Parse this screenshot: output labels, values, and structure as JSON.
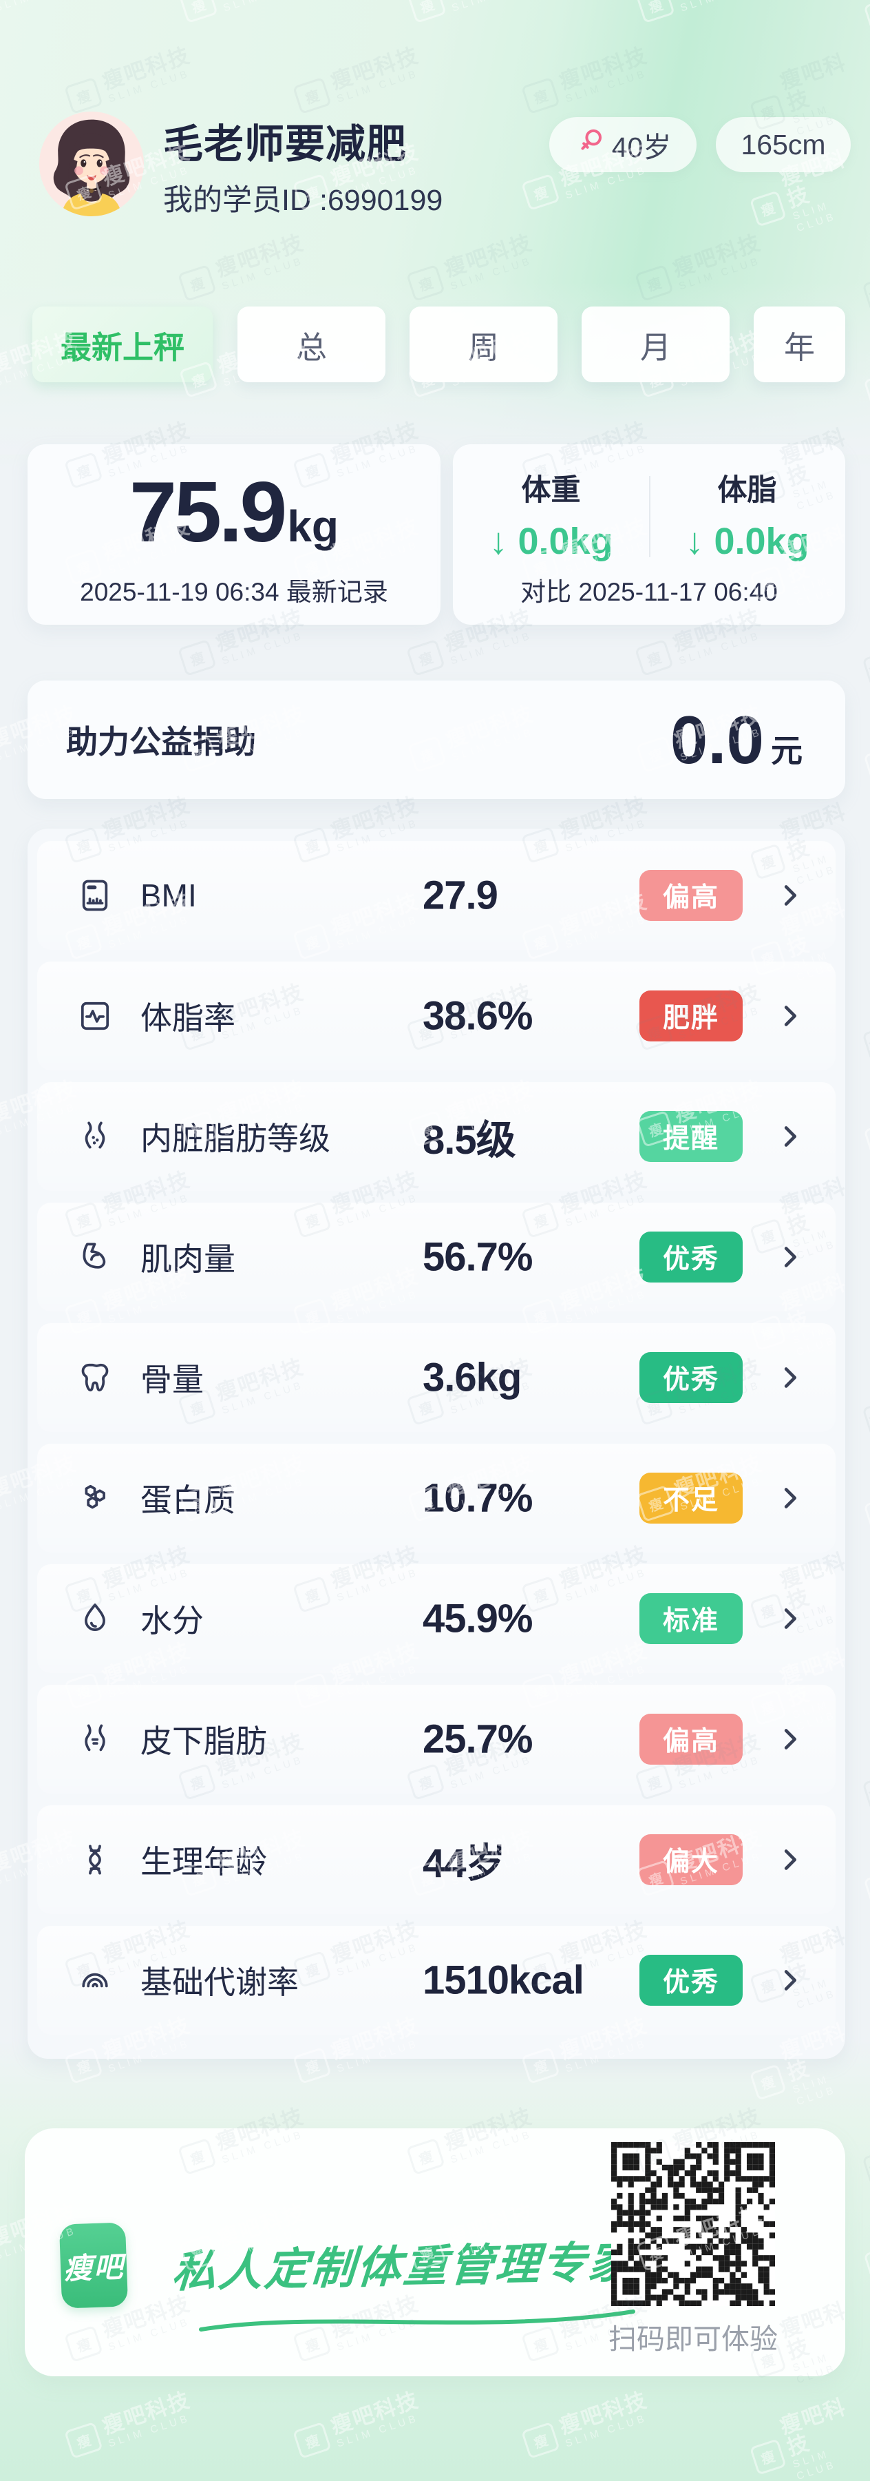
{
  "brand": {
    "watermark_cn": "瘦吧科技",
    "watermark_en": "SLIM CLUB",
    "logo_text": "瘦吧"
  },
  "header": {
    "name": "毛老师要减肥",
    "student_id": "我的学员ID :6990199",
    "age": "40岁",
    "height": "165cm"
  },
  "tabs": [
    {
      "id": "latest-weigh",
      "label": "最新上秤",
      "active": true
    },
    {
      "id": "total",
      "label": "总",
      "active": false
    },
    {
      "id": "week",
      "label": "周",
      "active": false
    },
    {
      "id": "month",
      "label": "月",
      "active": false
    },
    {
      "id": "year",
      "label": "年",
      "active": false
    }
  ],
  "latest_record": {
    "weight_value": "75.9",
    "weight_unit": "kg",
    "record_line": "2025-11-19 06:34 最新记录"
  },
  "comparison": {
    "columns": [
      {
        "label": "体重",
        "arrow": "↓",
        "delta": "0.0kg"
      },
      {
        "label": "体脂",
        "arrow": "↓",
        "delta": "0.0kg"
      }
    ],
    "compare_line": "对比 2025-11-17 06:40"
  },
  "donation": {
    "label": "助力公益捐助",
    "value": "0.0",
    "unit": "元"
  },
  "metrics": [
    {
      "icon": "bmi-ruler-icon",
      "label": "BMI",
      "value": "27.9",
      "badge": "偏高",
      "badge_color": "#F59595"
    },
    {
      "icon": "body-fat-icon",
      "label": "体脂率",
      "value": "38.6%",
      "badge": "肥胖",
      "badge_color": "#E8574F"
    },
    {
      "icon": "visceral-fat-icon",
      "label": "内脏脂肪等级",
      "value": "8.5级",
      "badge": "提醒",
      "badge_color": "#55D5A0"
    },
    {
      "icon": "muscle-icon",
      "label": "肌肉量",
      "value": "56.7%",
      "badge": "优秀",
      "badge_color": "#28BC84"
    },
    {
      "icon": "bone-icon",
      "label": "骨量",
      "value": "3.6kg",
      "badge": "优秀",
      "badge_color": "#28BC84"
    },
    {
      "icon": "protein-icon",
      "label": "蛋白质",
      "value": "10.7%",
      "badge": "不足",
      "badge_color": "#F6B831"
    },
    {
      "icon": "water-icon",
      "label": "水分",
      "value": "45.9%",
      "badge": "标准",
      "badge_color": "#3FCB92"
    },
    {
      "icon": "subcutaneous-fat-icon",
      "label": "皮下脂肪",
      "value": "25.7%",
      "badge": "偏高",
      "badge_color": "#F59595"
    },
    {
      "icon": "metabolic-age-icon",
      "label": "生理年龄",
      "value": "44岁",
      "badge": "偏大",
      "badge_color": "#F59595"
    },
    {
      "icon": "bmr-icon",
      "label": "基础代谢率",
      "value": "1510kcal",
      "badge": "优秀",
      "badge_color": "#28BC84"
    }
  ],
  "footer": {
    "slogan": "私人定制体重管理专家",
    "qr_caption": "扫码即可体验"
  },
  "colors": {
    "accent_green": "#3CC68F",
    "tab_active_green": "#2FBF66",
    "badge_high_salmon": "#F59595",
    "badge_obese_red": "#E8574F",
    "badge_remind_green": "#55D5A0",
    "badge_excellent_green": "#28BC84",
    "badge_insufficient_amber": "#F6B831",
    "badge_standard_green": "#3FCB92",
    "text_dark": "#232A45"
  }
}
